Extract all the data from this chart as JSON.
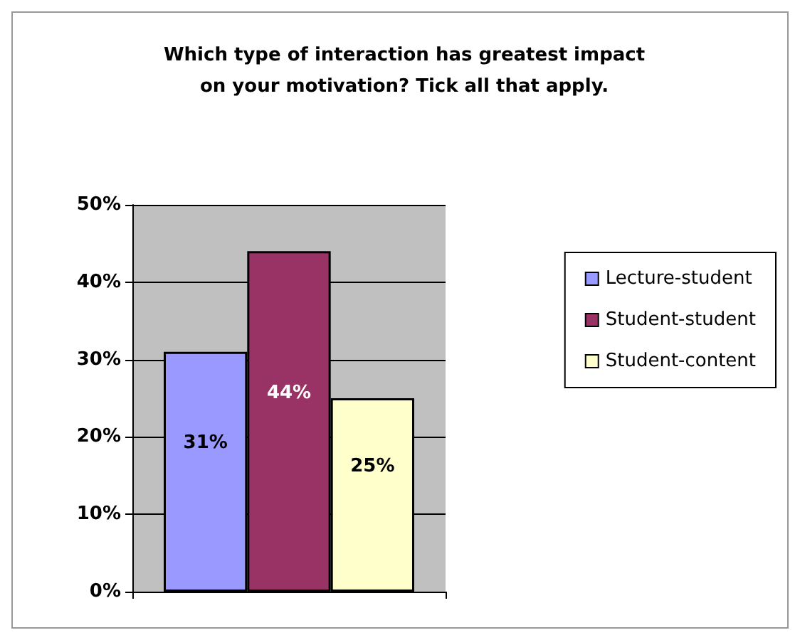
{
  "chart_data": {
    "type": "bar",
    "title": "Which type of interaction has greatest impact\non your motivation? Tick all that apply.",
    "categories": [
      null
    ],
    "series": [
      {
        "name": "Lecture-student",
        "color": "#9999ff",
        "values": [
          31
        ],
        "value_labels": [
          "31%"
        ]
      },
      {
        "name": "Student-student",
        "color": "#993366",
        "values": [
          44
        ],
        "value_labels": [
          "44%"
        ]
      },
      {
        "name": "Student-content",
        "color": "#ffffcc",
        "values": [
          25
        ],
        "value_labels": [
          "25%"
        ]
      }
    ],
    "ylim": [
      0,
      50
    ],
    "yticks": [
      {
        "value": 0,
        "label": "0%"
      },
      {
        "value": 10,
        "label": "10%"
      },
      {
        "value": 20,
        "label": "20%"
      },
      {
        "value": 30,
        "label": "30%"
      },
      {
        "value": 40,
        "label": "40%"
      },
      {
        "value": 50,
        "label": "50%"
      }
    ],
    "grid": "y",
    "legend": "right"
  }
}
